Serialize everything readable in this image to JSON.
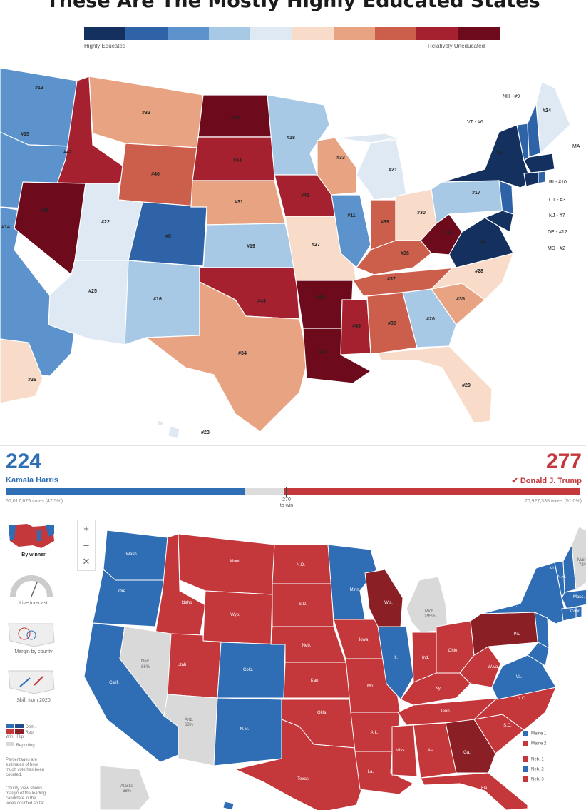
{
  "title": "These Are The Mostly Highly Educated States",
  "legend": {
    "left_label": "Highly Educated",
    "right_label": "Relatively Uneducated",
    "colors": [
      "#13305f",
      "#2f63a8",
      "#5c93cc",
      "#a7c9e6",
      "#dfe9f3",
      "#f8dcc9",
      "#e8a383",
      "#cc5f4c",
      "#a5212f",
      "#6d0b1c"
    ]
  },
  "education_map": {
    "rankings": [
      {
        "state": "WA",
        "rank": "#13"
      },
      {
        "state": "OR",
        "rank": "#15"
      },
      {
        "state": "CA",
        "rank": "#14"
      },
      {
        "state": "ID",
        "rank": "#42"
      },
      {
        "state": "NV",
        "rank": "#46"
      },
      {
        "state": "MT",
        "rank": "#32"
      },
      {
        "state": "WY",
        "rank": "#40"
      },
      {
        "state": "UT",
        "rank": "#22"
      },
      {
        "state": "AZ",
        "rank": "#25"
      },
      {
        "state": "CO",
        "rank": "#8"
      },
      {
        "state": "NM",
        "rank": "#16"
      },
      {
        "state": "ND",
        "rank": "#49"
      },
      {
        "state": "SD",
        "rank": "#44"
      },
      {
        "state": "NE",
        "rank": "#31"
      },
      {
        "state": "KS",
        "rank": "#19"
      },
      {
        "state": "OK",
        "rank": "#43"
      },
      {
        "state": "TX",
        "rank": "#34"
      },
      {
        "state": "MN",
        "rank": "#18"
      },
      {
        "state": "IA",
        "rank": "#41"
      },
      {
        "state": "MO",
        "rank": "#27"
      },
      {
        "state": "AR",
        "rank": "#50"
      },
      {
        "state": "LA",
        "rank": "#47"
      },
      {
        "state": "WI",
        "rank": "#33"
      },
      {
        "state": "IL",
        "rank": "#11"
      },
      {
        "state": "MS",
        "rank": "#45"
      },
      {
        "state": "MI",
        "rank": "#21"
      },
      {
        "state": "IN",
        "rank": "#39"
      },
      {
        "state": "KY",
        "rank": "#36"
      },
      {
        "state": "TN",
        "rank": "#37"
      },
      {
        "state": "AL",
        "rank": "#38"
      },
      {
        "state": "OH",
        "rank": "#30"
      },
      {
        "state": "WV",
        "rank": "#48"
      },
      {
        "state": "GA",
        "rank": "#20"
      },
      {
        "state": "FL",
        "rank": "#29"
      },
      {
        "state": "SC",
        "rank": "#35"
      },
      {
        "state": "NC",
        "rank": "#28"
      },
      {
        "state": "VA",
        "rank": "#4"
      },
      {
        "state": "PA",
        "rank": "#17"
      },
      {
        "state": "NY",
        "rank": "#5"
      },
      {
        "state": "ME",
        "rank": "#24"
      },
      {
        "state": "AK",
        "rank": "#26"
      },
      {
        "state": "HI",
        "rank": "#23"
      }
    ],
    "callouts": [
      "NH - #9",
      "VT - #6",
      "MA",
      "RI - #10",
      "CT - #3",
      "NJ - #7",
      "DE - #12",
      "MD - #2"
    ]
  },
  "election": {
    "harris": {
      "ev": "224",
      "name": "Kamala Harris",
      "votes": "66,017,679 votes (47.5%)",
      "color": "#2f6eb5"
    },
    "trump": {
      "ev": "277",
      "name": "Donald J. Trump",
      "votes": "70,927,335 votes (51.0%)",
      "color": "#c4373a"
    },
    "threshold": {
      "value": "270",
      "label": "to win"
    },
    "harris_fraction": 0.4163,
    "trump_fraction": 0.5149,
    "zoom": {
      "plus": "+",
      "minus": "–",
      "reset": "✕"
    },
    "side_views": [
      {
        "label": "By winner",
        "icon": "us-map-thumbnail-icon"
      },
      {
        "label": "Live forecast",
        "icon": "forecast-gauge-icon"
      },
      {
        "label": "Margin by county",
        "icon": "bubble-map-icon"
      },
      {
        "label": "Shift from 2020",
        "icon": "arrow-map-icon"
      }
    ],
    "key_lines": [
      "Dem.",
      "Rep.",
      "Win",
      "Flip",
      "Reporting"
    ],
    "key_note": "Percentages are estimates of how much vote has been counted.",
    "county_note": "County view shows margin of the leading candidate in the votes counted so far.",
    "state_labels": [
      "Wash.",
      "Ore.",
      "Calif.",
      "Idaho",
      "Nev.",
      "86%",
      "Utah",
      "Ariz.",
      "63%",
      "Mont.",
      "Wyo.",
      "Colo.",
      "N.M.",
      "N.D.",
      "S.D.",
      "Neb.",
      "Kan.",
      "Okla.",
      "Texas",
      "Minn.",
      "Iowa",
      "Mo.",
      "Ark.",
      "La.",
      "Wis.",
      "Ill.",
      "Mich.",
      ">95%",
      "Ind.",
      "Ohio",
      "Ky.",
      "Tenn.",
      "Miss.",
      "Ala.",
      "Ga.",
      "Fla.",
      "S.C.",
      "N.C.",
      "Va.",
      "W.Va.",
      "Pa.",
      "N.Y.",
      "Vt.",
      "N.H.",
      "Mass.",
      "Conn.",
      "R.I.",
      "N.J.",
      "Del.",
      "Md.",
      "Maine",
      "73%",
      "Alaska",
      "68%",
      "Hawaii"
    ],
    "district_key": [
      {
        "label": "Maine 1",
        "color": "#2f6eb5"
      },
      {
        "label": "Maine 2",
        "color": "#c4373a"
      },
      {
        "label": "Neb. 1",
        "color": "#c4373a"
      },
      {
        "label": "Neb. 2",
        "color": "#2f6eb5"
      },
      {
        "label": "Neb. 3",
        "color": "#c4373a"
      }
    ],
    "colors": {
      "dem": "#2f6eb5",
      "rep": "#c4373a",
      "flip": "#8a1f25",
      "reporting": "#d9d9d9"
    }
  }
}
